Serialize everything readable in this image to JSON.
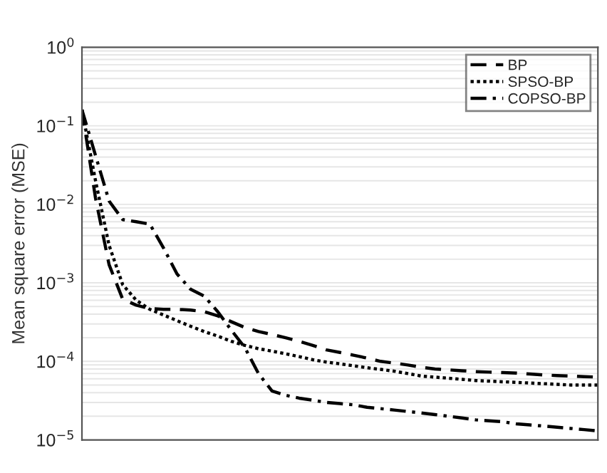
{
  "chart_data": {
    "type": "line",
    "ylabel": "Mean square error (MSE)",
    "log": "y",
    "grid": "y",
    "legend": "top right",
    "tick_labels": "y",
    "categories": [
      null,
      null,
      null,
      null,
      null,
      null,
      null,
      null,
      null,
      null,
      null,
      null,
      null,
      null,
      null,
      null,
      null,
      null,
      null,
      null,
      null,
      null,
      null,
      null,
      null,
      null,
      null,
      null,
      null,
      null,
      null,
      null,
      null,
      null,
      null,
      null,
      null,
      null,
      null
    ],
    "ylim": [
      1e-05,
      1
    ],
    "yticks": [
      {
        "value": 1e-05,
        "label": "10$^{−5}$"
      },
      {
        "value": 0.0001,
        "label": "10$^{−4}$"
      },
      {
        "value": 0.001,
        "label": "10$^{−3}$"
      },
      {
        "value": 0.01,
        "label": "10$^{−2}$"
      },
      {
        "value": 0.1,
        "label": "10$^{−1}$"
      },
      {
        "value": 1,
        "label": "10$^{0}$"
      }
    ],
    "series": [
      {
        "name": "BP",
        "color": "#000000",
        "line_style": "dashed",
        "values": [
          0.16,
          0.012,
          0.0017,
          0.00062,
          0.00052,
          0.00047,
          0.00046,
          0.00046,
          0.00045,
          0.00043,
          0.00038,
          0.00032,
          0.00027,
          0.00024,
          0.00022,
          0.0002,
          0.00018,
          0.00016,
          0.00014,
          0.00013,
          0.00012,
          0.00011,
          0.0001,
          9.5e-05,
          9e-05,
          8.4e-05,
          8e-05,
          7.8e-05,
          7.6e-05,
          7.4e-05,
          7.3e-05,
          7.2e-05,
          7.1e-05,
          6.9e-05,
          6.7e-05,
          6.6e-05,
          6.5e-05,
          6.4e-05,
          6.3e-05
        ]
      },
      {
        "name": "SPSO-BP",
        "color": "#000000",
        "line_style": "dotted",
        "values": [
          0.16,
          0.02,
          0.003,
          0.00095,
          0.0006,
          0.00046,
          0.00039,
          0.00033,
          0.00028,
          0.00024,
          0.00021,
          0.00018,
          0.00016,
          0.000145,
          0.000135,
          0.000125,
          0.000115,
          0.000105,
          9.8e-05,
          9.3e-05,
          8.8e-05,
          8.3e-05,
          7.9e-05,
          7.5e-05,
          7e-05,
          6.5e-05,
          6.3e-05,
          6.1e-05,
          5.9e-05,
          5.7e-05,
          5.6e-05,
          5.5e-05,
          5.4e-05,
          5.3e-05,
          5.2e-05,
          5.1e-05,
          5e-05,
          5e-05,
          5e-05
        ]
      },
      {
        "name": "COPSO-BP",
        "color": "#000000",
        "line_style": "dashdot",
        "values": [
          0.16,
          0.042,
          0.011,
          0.0064,
          0.006,
          0.0056,
          0.0028,
          0.0013,
          0.00083,
          0.00068,
          0.00043,
          0.00025,
          0.00015,
          7e-05,
          4.2e-05,
          3.7e-05,
          3.4e-05,
          3.2e-05,
          3e-05,
          2.9e-05,
          2.8e-05,
          2.6e-05,
          2.5e-05,
          2.4e-05,
          2.3e-05,
          2.2e-05,
          2.1e-05,
          2e-05,
          1.9e-05,
          1.8e-05,
          1.75e-05,
          1.7e-05,
          1.6e-05,
          1.55e-05,
          1.5e-05,
          1.45e-05,
          1.4e-05,
          1.35e-05,
          1.3e-05
        ]
      }
    ]
  }
}
